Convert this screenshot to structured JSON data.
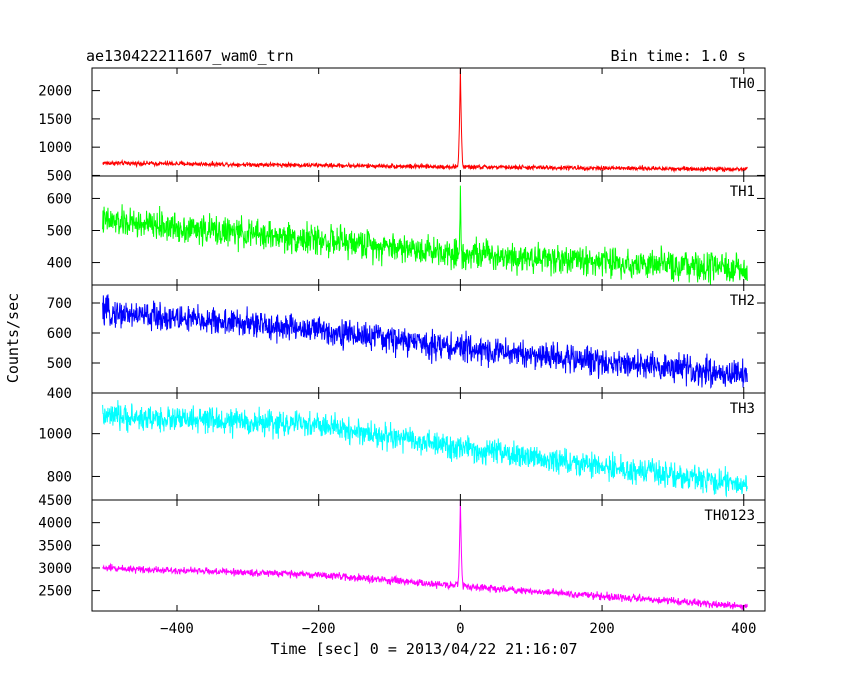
{
  "chart_data": {
    "type": "line",
    "title": "ae130422211607_wam0_trn",
    "subtitle": "Bin time: 1.0 s",
    "xlabel": "Time [sec] 0 = 2013/04/22 21:16:07",
    "ylabel": "Counts/sec",
    "xlim": [
      -520,
      430
    ],
    "x_ticks": [
      -400,
      -200,
      0,
      200,
      400
    ],
    "x_tick_labels": [
      "−400",
      "−200",
      "0",
      "200",
      "400"
    ],
    "x_range": [
      -505,
      405
    ],
    "grid": false,
    "panels": [
      {
        "name": "TH0",
        "color": "#ff0000",
        "ylim": [
          490,
          2400
        ],
        "y_ticks": [
          500,
          1000,
          1500,
          2000
        ],
        "y_tick_labels": [
          "500",
          "1000",
          "1500",
          "2000"
        ],
        "trend": [
          [
            -505,
            720
          ],
          [
            -200,
            680
          ],
          [
            0,
            650
          ],
          [
            405,
            610
          ]
        ],
        "noise": 30,
        "peak": {
          "x": 0,
          "y": 2400,
          "width": 4
        }
      },
      {
        "name": "TH1",
        "color": "#00ff00",
        "ylim": [
          330,
          670
        ],
        "y_ticks": [
          400,
          500,
          600
        ],
        "y_tick_labels": [
          "400",
          "500",
          "600"
        ],
        "trend": [
          [
            -505,
            530
          ],
          [
            -200,
            470
          ],
          [
            0,
            430
          ],
          [
            405,
            375
          ]
        ],
        "noise": 35,
        "peak": {
          "x": 0,
          "y": 640,
          "width": 2
        }
      },
      {
        "name": "TH2",
        "color": "#0000ff",
        "ylim": [
          400,
          760
        ],
        "y_ticks": [
          400,
          500,
          600,
          700
        ],
        "y_tick_labels": [
          "400",
          "500",
          "600",
          "700"
        ],
        "trend": [
          [
            -505,
            670
          ],
          [
            -200,
            610
          ],
          [
            0,
            550
          ],
          [
            405,
            460
          ]
        ],
        "noise": 35,
        "peak": null
      },
      {
        "name": "TH3",
        "color": "#00ffff",
        "ylim": [
          690,
          1190
        ],
        "y_ticks": [
          800,
          1000
        ],
        "y_tick_labels": [
          "800",
          "1000"
        ],
        "trend": [
          [
            -505,
            1080
          ],
          [
            -200,
            1040
          ],
          [
            0,
            930
          ],
          [
            405,
            760
          ]
        ],
        "noise": 45,
        "peak": null
      },
      {
        "name": "TH0123",
        "color": "#ff00ff",
        "ylim": [
          2050,
          4500
        ],
        "y_ticks": [
          2500,
          3000,
          3500,
          4000,
          4500
        ],
        "y_tick_labels": [
          "2500",
          "3000",
          "3500",
          "4000",
          "4500"
        ],
        "trend": [
          [
            -505,
            3000
          ],
          [
            -200,
            2850
          ],
          [
            0,
            2600
          ],
          [
            405,
            2150
          ]
        ],
        "noise": 60,
        "peak": {
          "x": 0,
          "y": 4500,
          "width": 4
        }
      }
    ]
  }
}
